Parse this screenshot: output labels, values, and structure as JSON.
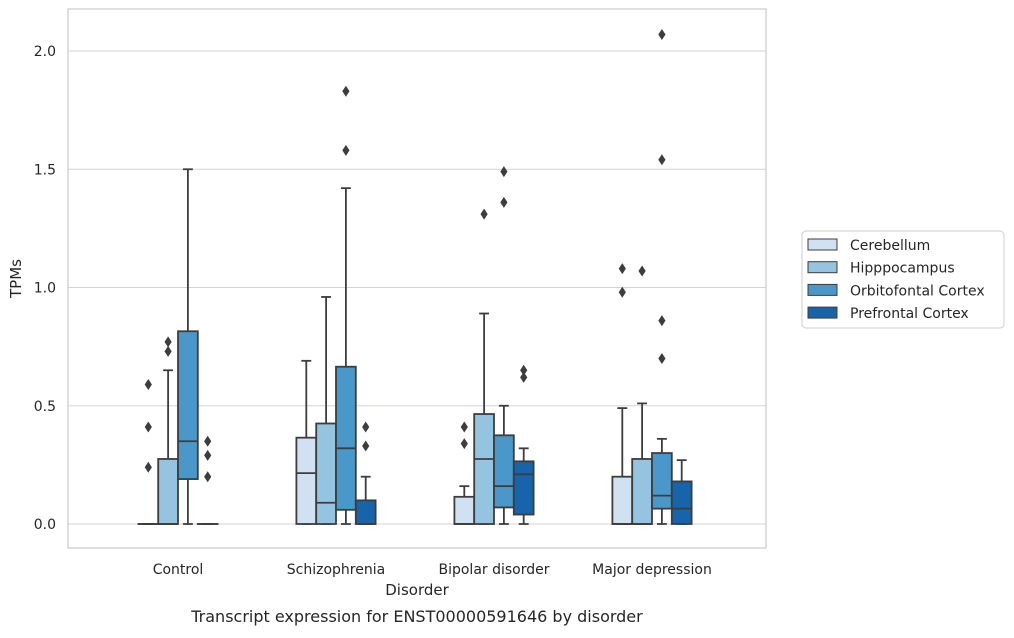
{
  "chart_data": {
    "type": "box",
    "caption": "Transcript expression for ENST00000591646 by disorder",
    "xlabel": "Disorder",
    "ylabel": "TPMs",
    "ylim": [
      -0.1,
      2.18
    ],
    "yticks": [
      0.0,
      0.5,
      1.0,
      1.5,
      2.0
    ],
    "ytick_labels": [
      "0.0",
      "0.5",
      "1.0",
      "1.5",
      "2.0"
    ],
    "grid": "horizontal",
    "legend_position": "right",
    "categories": [
      "Control",
      "Schizophrenia",
      "Bipolar disorder",
      "Major depression"
    ],
    "series": [
      {
        "name": "Cerebellum",
        "color": "#d0e1f2",
        "boxes": [
          {
            "q1": 0.0,
            "median": 0.0,
            "q3": 0.0,
            "whisker_low": 0.0,
            "whisker_high": 0.0,
            "outliers": [
              0.59,
              0.41,
              0.24
            ]
          },
          {
            "q1": 0.0,
            "median": 0.215,
            "q3": 0.365,
            "whisker_low": 0.0,
            "whisker_high": 0.69,
            "outliers": []
          },
          {
            "q1": 0.0,
            "median": 0.0,
            "q3": 0.115,
            "whisker_low": 0.0,
            "whisker_high": 0.16,
            "outliers": [
              0.41,
              0.34
            ]
          },
          {
            "q1": 0.0,
            "median": 0.0,
            "q3": 0.2,
            "whisker_low": 0.0,
            "whisker_high": 0.49,
            "outliers": [
              1.08,
              0.98
            ]
          }
        ]
      },
      {
        "name": "Hipppocampus",
        "color": "#94c4df",
        "boxes": [
          {
            "q1": 0.0,
            "median": 0.0,
            "q3": 0.275,
            "whisker_low": 0.0,
            "whisker_high": 0.65,
            "outliers": [
              0.77,
              0.73
            ]
          },
          {
            "q1": 0.0,
            "median": 0.09,
            "q3": 0.425,
            "whisker_low": 0.0,
            "whisker_high": 0.96,
            "outliers": []
          },
          {
            "q1": 0.0,
            "median": 0.275,
            "q3": 0.465,
            "whisker_low": 0.0,
            "whisker_high": 0.89,
            "outliers": [
              1.31
            ]
          },
          {
            "q1": 0.0,
            "median": 0.0,
            "q3": 0.275,
            "whisker_low": 0.0,
            "whisker_high": 0.51,
            "outliers": [
              1.07
            ]
          }
        ]
      },
      {
        "name": "Orbitofontal Cortex",
        "color": "#4a98c9",
        "boxes": [
          {
            "q1": 0.19,
            "median": 0.35,
            "q3": 0.815,
            "whisker_low": 0.0,
            "whisker_high": 1.5,
            "outliers": []
          },
          {
            "q1": 0.06,
            "median": 0.32,
            "q3": 0.665,
            "whisker_low": 0.0,
            "whisker_high": 1.42,
            "outliers": [
              1.83,
              1.58
            ]
          },
          {
            "q1": 0.07,
            "median": 0.16,
            "q3": 0.375,
            "whisker_low": 0.0,
            "whisker_high": 0.5,
            "outliers": [
              1.49,
              1.36
            ]
          },
          {
            "q1": 0.065,
            "median": 0.12,
            "q3": 0.3,
            "whisker_low": 0.0,
            "whisker_high": 0.36,
            "outliers": [
              2.07,
              1.54,
              0.86,
              0.7
            ]
          }
        ]
      },
      {
        "name": "Prefrontal Cortex",
        "color": "#1764ab",
        "boxes": [
          {
            "q1": 0.0,
            "median": 0.0,
            "q3": 0.0,
            "whisker_low": 0.0,
            "whisker_high": 0.0,
            "outliers": [
              0.35,
              0.29,
              0.2
            ]
          },
          {
            "q1": 0.0,
            "median": 0.0,
            "q3": 0.1,
            "whisker_low": 0.0,
            "whisker_high": 0.2,
            "outliers": [
              0.41,
              0.33
            ]
          },
          {
            "q1": 0.04,
            "median": 0.21,
            "q3": 0.265,
            "whisker_low": 0.0,
            "whisker_high": 0.32,
            "outliers": [
              0.65,
              0.62
            ]
          },
          {
            "q1": 0.0,
            "median": 0.065,
            "q3": 0.18,
            "whisker_low": 0.0,
            "whisker_high": 0.27,
            "outliers": []
          }
        ]
      }
    ]
  }
}
